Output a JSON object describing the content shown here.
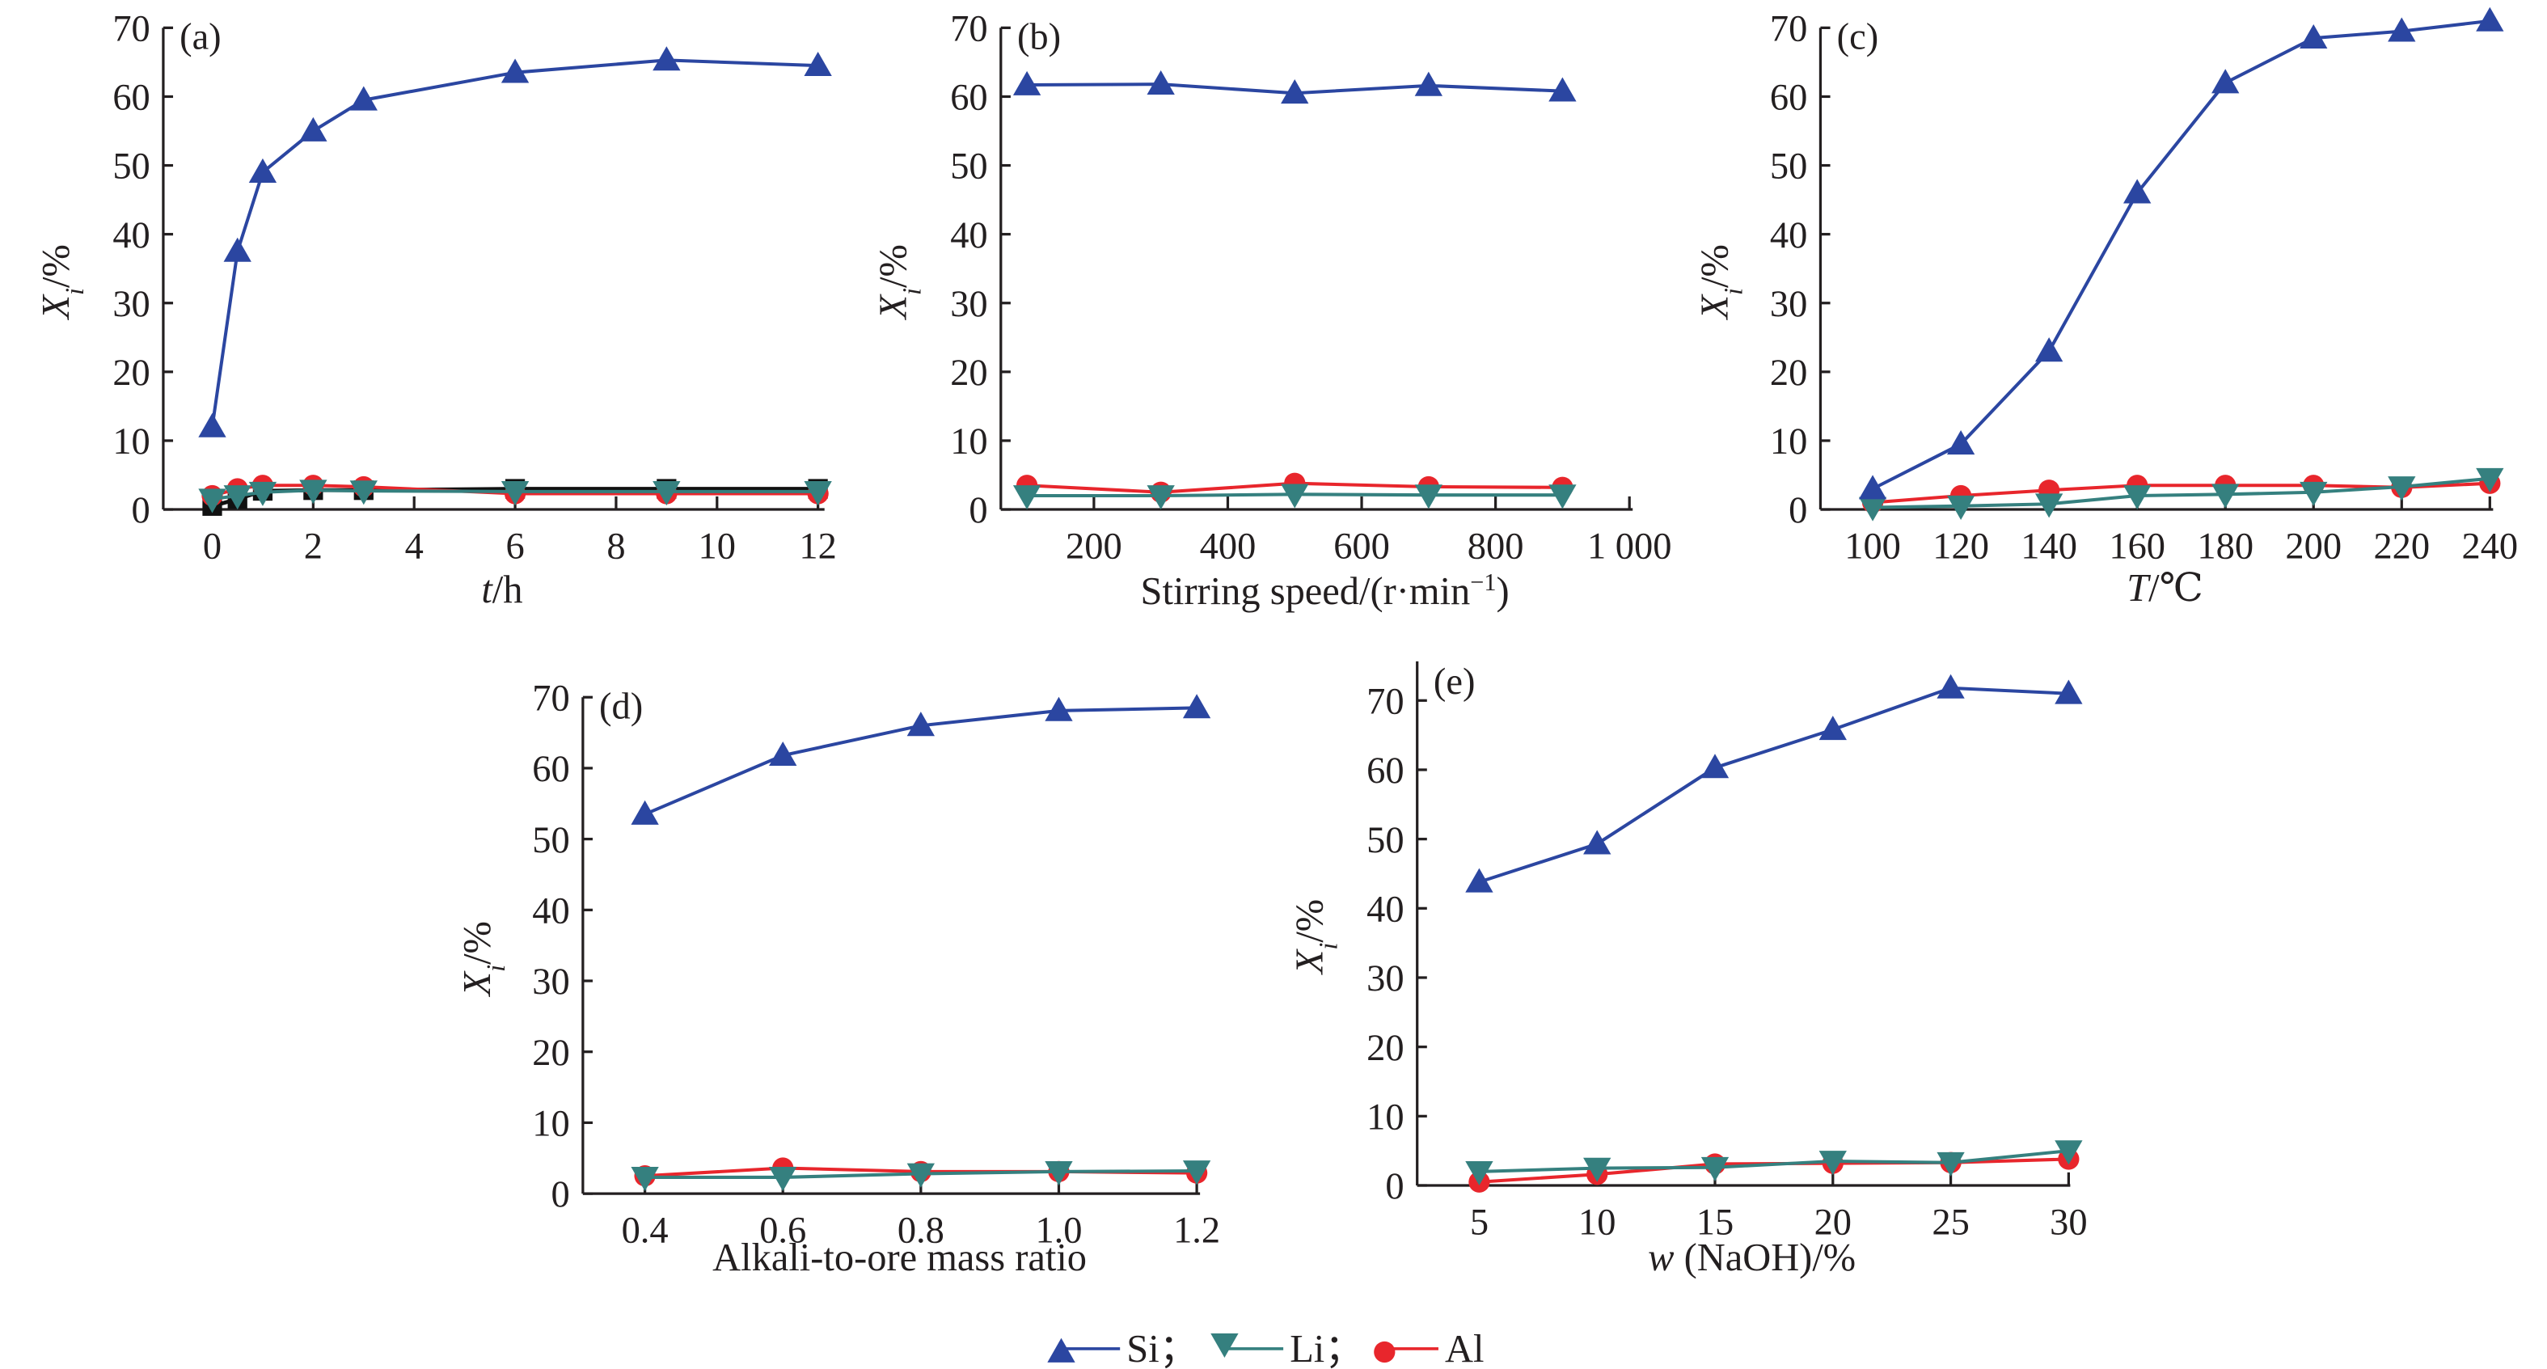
{
  "colors": {
    "Si": "#2b46a1",
    "Li": "#35807f",
    "Al": "#e8262c",
    "unlabeled": "#111111"
  },
  "legend": {
    "items": [
      {
        "key": "Si",
        "label": "Si；",
        "marker": "triangle-up"
      },
      {
        "key": "Li",
        "label": "Li；",
        "marker": "triangle-down"
      },
      {
        "key": "Al",
        "label": "Al",
        "marker": "circle"
      }
    ],
    "placement": "bottom-center"
  },
  "chart_data": [
    {
      "type": "line",
      "panel": "(a)",
      "xlabel": [
        {
          "text": "t",
          "italic": true
        },
        {
          "text": "/h"
        }
      ],
      "ylabel": {
        "var": "X",
        "sub": "i",
        "unit": "/%"
      },
      "xlim": [
        -1,
        12.1
      ],
      "ylim": [
        0,
        70
      ],
      "xticks": [
        0,
        2,
        4,
        6,
        8,
        10,
        12
      ],
      "xtick_labels": [
        "0",
        "2",
        "4",
        "6",
        "8",
        "10",
        "12"
      ],
      "yticks": [
        0,
        10,
        20,
        30,
        40,
        50,
        60,
        70
      ],
      "ytick_labels": [
        "0",
        "10",
        "20",
        "30",
        "40",
        "50",
        "60",
        "70"
      ],
      "x": [
        0,
        0.5,
        1,
        2,
        3,
        6,
        9,
        12
      ],
      "series": [
        {
          "key": "unlabeled",
          "marker": "square",
          "values": [
            0.5,
            1.5,
            2.7,
            2.8,
            2.8,
            3.0,
            3.0,
            3.0
          ]
        },
        {
          "key": "Al",
          "name": "Al",
          "values": [
            2.0,
            3.0,
            3.5,
            3.5,
            3.3,
            2.3,
            2.3,
            2.3
          ]
        },
        {
          "key": "Li",
          "name": "Li",
          "values": [
            1.5,
            2.0,
            2.5,
            2.8,
            2.7,
            2.6,
            2.6,
            2.6
          ]
        },
        {
          "key": "Si",
          "name": "Si",
          "values": [
            12.0,
            37.5,
            49.0,
            55.0,
            59.5,
            63.5,
            65.3,
            64.5
          ]
        }
      ]
    },
    {
      "type": "line",
      "panel": "(b)",
      "xlabel": [
        {
          "text": "Stirring speed/(r·min"
        },
        {
          "text": "−1",
          "sup": true
        },
        {
          "text": ")"
        }
      ],
      "ylabel": {
        "var": "X",
        "sub": "i",
        "unit": "/%"
      },
      "xlim": [
        61,
        1000
      ],
      "ylim": [
        0,
        70
      ],
      "xticks": [
        200,
        400,
        600,
        800,
        1000
      ],
      "xtick_labels": [
        "200",
        "400",
        "600",
        "800",
        "1 000"
      ],
      "yticks": [
        0,
        10,
        20,
        30,
        40,
        50,
        60,
        70
      ],
      "ytick_labels": [
        "0",
        "10",
        "20",
        "30",
        "40",
        "50",
        "60",
        "70"
      ],
      "x": [
        100,
        300,
        500,
        700,
        900
      ],
      "series": [
        {
          "key": "Al",
          "name": "Al",
          "values": [
            3.5,
            2.5,
            3.8,
            3.3,
            3.2
          ]
        },
        {
          "key": "Li",
          "name": "Li",
          "values": [
            2.0,
            2.0,
            2.2,
            2.1,
            2.1
          ]
        },
        {
          "key": "Si",
          "name": "Si",
          "values": [
            61.7,
            61.8,
            60.5,
            61.6,
            60.8
          ]
        }
      ]
    },
    {
      "type": "line",
      "panel": "(c)",
      "xlabel": [
        {
          "text": "T",
          "italic": true
        },
        {
          "text": "/℃"
        }
      ],
      "ylabel": {
        "var": "X",
        "sub": "i",
        "unit": "/%"
      },
      "xlim": [
        88,
        240
      ],
      "ylim": [
        0,
        70
      ],
      "xticks": [
        100,
        120,
        140,
        160,
        180,
        200,
        220,
        240
      ],
      "xtick_labels": [
        "100",
        "120",
        "140",
        "160",
        "180",
        "200",
        "220",
        "240"
      ],
      "yticks": [
        0,
        10,
        20,
        30,
        40,
        50,
        60,
        70
      ],
      "ytick_labels": [
        "0",
        "10",
        "20",
        "30",
        "40",
        "50",
        "60",
        "70"
      ],
      "x": [
        100,
        120,
        140,
        160,
        180,
        200,
        220,
        240
      ],
      "series": [
        {
          "key": "Al",
          "name": "Al",
          "values": [
            1.0,
            2.0,
            2.8,
            3.5,
            3.5,
            3.5,
            3.2,
            3.8
          ]
        },
        {
          "key": "Li",
          "name": "Li",
          "values": [
            0.3,
            0.5,
            0.8,
            2.0,
            2.2,
            2.5,
            3.3,
            4.5
          ]
        },
        {
          "key": "Si",
          "name": "Si",
          "values": [
            3.0,
            9.5,
            23.0,
            46.0,
            62.0,
            68.5,
            69.5,
            71.0
          ]
        }
      ]
    },
    {
      "type": "line",
      "panel": "(d)",
      "xlabel": [
        {
          "text": "Alkali-to-ore mass ratio"
        }
      ],
      "ylabel": {
        "var": "X",
        "sub": "i",
        "unit": "/%"
      },
      "xlim": [
        0.3,
        1.2
      ],
      "ylim": [
        0,
        70
      ],
      "xticks": [
        0.4,
        0.6,
        0.8,
        1.0,
        1.2
      ],
      "xtick_labels": [
        "0.4",
        "0.6",
        "0.8",
        "1.0",
        "1.2"
      ],
      "yticks": [
        0,
        10,
        20,
        30,
        40,
        50,
        60,
        70
      ],
      "ytick_labels": [
        "0",
        "10",
        "20",
        "30",
        "40",
        "50",
        "60",
        "70"
      ],
      "x": [
        0.4,
        0.6,
        0.8,
        1.0,
        1.2
      ],
      "series": [
        {
          "key": "Al",
          "name": "Al",
          "values": [
            2.5,
            3.6,
            3.1,
            3.1,
            2.9
          ]
        },
        {
          "key": "Li",
          "name": "Li",
          "values": [
            2.3,
            2.3,
            2.8,
            3.1,
            3.2
          ]
        },
        {
          "key": "Si",
          "name": "Si",
          "values": [
            53.5,
            61.8,
            66.0,
            68.1,
            68.5
          ]
        }
      ]
    },
    {
      "type": "line",
      "panel": "(e)",
      "xlabel": [
        {
          "text": "w",
          "italic": true
        },
        {
          "text": " (NaOH)/%"
        }
      ],
      "ylabel": {
        "var": "X",
        "sub": "i",
        "unit": "/%"
      },
      "xlim": [
        2.5,
        30
      ],
      "ylim": [
        0,
        75
      ],
      "xticks": [
        5,
        10,
        15,
        20,
        25,
        30
      ],
      "xtick_labels": [
        "5",
        "10",
        "15",
        "20",
        "25",
        "30"
      ],
      "yticks": [
        0,
        10,
        20,
        30,
        40,
        50,
        60,
        70
      ],
      "ytick_labels": [
        "0",
        "10",
        "20",
        "30",
        "40",
        "50",
        "60",
        "70"
      ],
      "x": [
        5,
        10,
        15,
        20,
        25,
        30
      ],
      "series": [
        {
          "key": "Al",
          "name": "Al",
          "values": [
            0.5,
            1.6,
            3.1,
            3.2,
            3.3,
            3.8
          ]
        },
        {
          "key": "Li",
          "name": "Li",
          "values": [
            2.0,
            2.5,
            2.6,
            3.5,
            3.3,
            5.0
          ]
        },
        {
          "key": "Si",
          "name": "Si",
          "values": [
            43.8,
            49.3,
            60.3,
            65.8,
            71.8,
            71.0
          ]
        }
      ]
    }
  ]
}
